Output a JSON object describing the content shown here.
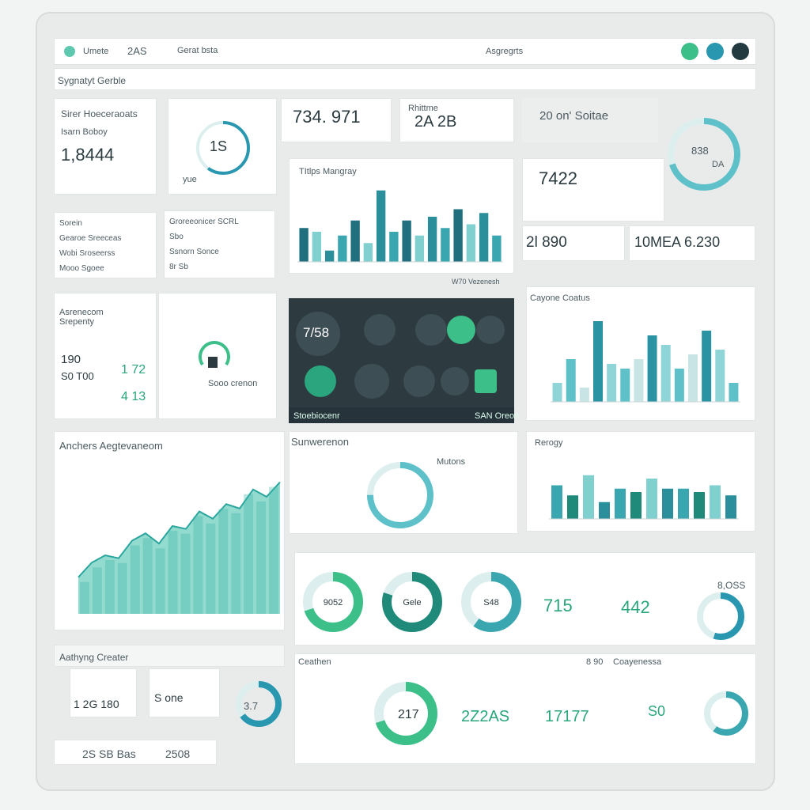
{
  "header": {
    "user": "Umete",
    "code": "2AS",
    "filter": "Gerat bsta",
    "search": "Asgregrts"
  },
  "subtitle": "Sygnatyt Gerble",
  "card_a": {
    "title": "Sirer Hoeceraoats",
    "label": "Isarn Boboy",
    "value": "1,8444"
  },
  "gauge_a": {
    "value": 60,
    "label": "1S",
    "caption": "yue"
  },
  "card_b": {
    "value": "734. 971"
  },
  "card_c": {
    "title": "Rhittme",
    "value": "2A  2B"
  },
  "card_d": {
    "title": "20 on' Soitae"
  },
  "gauge_b": {
    "value": 70,
    "label": "838",
    "caption": "DA"
  },
  "bars_a": {
    "title": "TItlps Mangray",
    "footer": "W70 Vezenesh",
    "values": [
      45,
      40,
      15,
      35,
      55,
      25,
      95,
      40,
      55,
      35,
      60,
      45,
      70,
      50,
      65,
      35
    ],
    "colors": [
      "#1f6f7e",
      "#7fd0cf",
      "#2a8f9a",
      "#3aa6b0"
    ],
    "ylim": [
      0,
      100
    ]
  },
  "card_e": {
    "value": "7422"
  },
  "card_f": {
    "value": "2l 890"
  },
  "card_g": {
    "value": "10MEA 6.230"
  },
  "list_a": [
    "Sorein",
    "Gearoe Sreeceas",
    "Wobi Sroseerss",
    "Mooo Sgoee"
  ],
  "list_b": [
    "Groreeonicer SCRL",
    "Sbo",
    "Ssnorn Sonce",
    "8r Sb"
  ],
  "stats": {
    "title": "Asrenecom Srepenty",
    "rows": [
      [
        "190",
        "1 72"
      ],
      [
        "S0 T00",
        "4 13"
      ]
    ]
  },
  "icon_panel": {
    "caption": "Sooo crenon"
  },
  "dark_panel": {
    "value": "7/58",
    "footer_left": "Stoebiocenr",
    "footer_right": "SAN Oreon"
  },
  "bars_b": {
    "title": "Cayone Coatus",
    "values": [
      20,
      45,
      15,
      85,
      40,
      35,
      45,
      70,
      60,
      35,
      50,
      75,
      55,
      20
    ],
    "colors": [
      "#8fd4d6",
      "#5ec0c8",
      "#c9e4e4",
      "#2a93a3"
    ],
    "ylim": [
      0,
      100
    ]
  },
  "area": {
    "title": "Anchers Aegtevaneom",
    "values": [
      25,
      35,
      40,
      38,
      50,
      55,
      48,
      60,
      58,
      70,
      65,
      75,
      72,
      85,
      80,
      90
    ],
    "ylim": [
      0,
      100
    ]
  },
  "rings": {
    "title": "Sunwerenon",
    "subtitle": "Mutons",
    "value": 75
  },
  "bars_c": {
    "title": "Rerogy",
    "values": [
      50,
      35,
      65,
      25,
      45,
      40,
      60,
      45,
      45,
      40,
      50,
      35
    ],
    "colors": [
      "#3aa6b0",
      "#1f8a7a",
      "#7fd0cf",
      "#2a8f9a"
    ],
    "ylim": [
      0,
      100
    ]
  },
  "donuts": [
    {
      "value": 70,
      "label": "9052"
    },
    {
      "value": 80,
      "label": "Gele"
    },
    {
      "value": 60,
      "label": "S48"
    }
  ],
  "tiles": [
    "715",
    "442"
  ],
  "gauge_c": {
    "value": 55,
    "label": "8,OSS"
  },
  "bottom": {
    "title": "Aathyng Creater",
    "value_a": "1 2G 180",
    "value_b": "S one",
    "value_c": "3.7",
    "value_d": "2S SB Bas",
    "value_e": "2508",
    "title_b": "Ceathen",
    "value_f": "217",
    "value_g": "2Z2AS",
    "value_h": "17177",
    "title_c": "Coayenessa",
    "value_i": "S0",
    "value_j": "8 90"
  },
  "donut_b": {
    "value": 65
  },
  "donut_c": {
    "value": 70
  },
  "gauge_d": {
    "value": 60
  }
}
